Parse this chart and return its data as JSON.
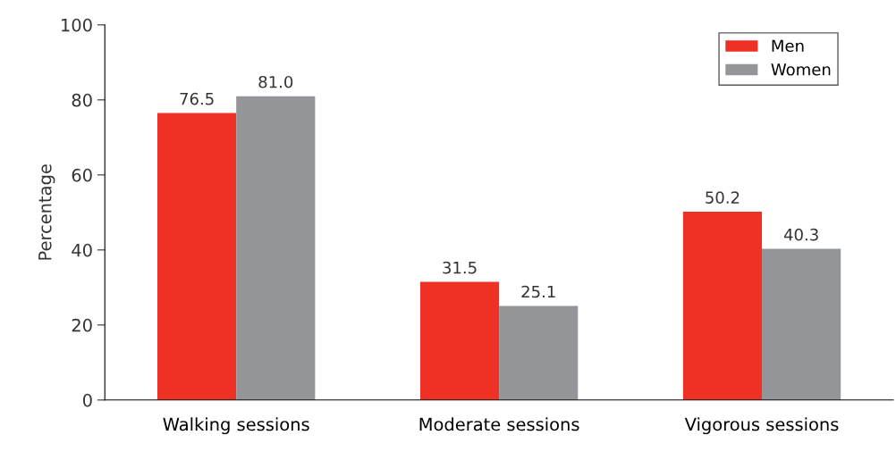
{
  "chart_data": {
    "type": "bar",
    "ylabel": "Percentage",
    "categories": [
      "Walking sessions",
      "Moderate sessions",
      "Vigorous sessions"
    ],
    "series": [
      {
        "name": "Men",
        "color": "#ee3124",
        "values": [
          76.5,
          31.5,
          50.2
        ]
      },
      {
        "name": "Women",
        "color": "#939598",
        "values": [
          81.0,
          25.1,
          40.3
        ]
      }
    ],
    "value_labels": [
      [
        "76.5",
        "31.5",
        "50.2"
      ],
      [
        "81.0",
        "25.1",
        "40.3"
      ]
    ],
    "ylim": [
      0,
      100
    ],
    "yticks": [
      0,
      20,
      40,
      60,
      80,
      100
    ],
    "grid": false,
    "legend": "top right"
  }
}
